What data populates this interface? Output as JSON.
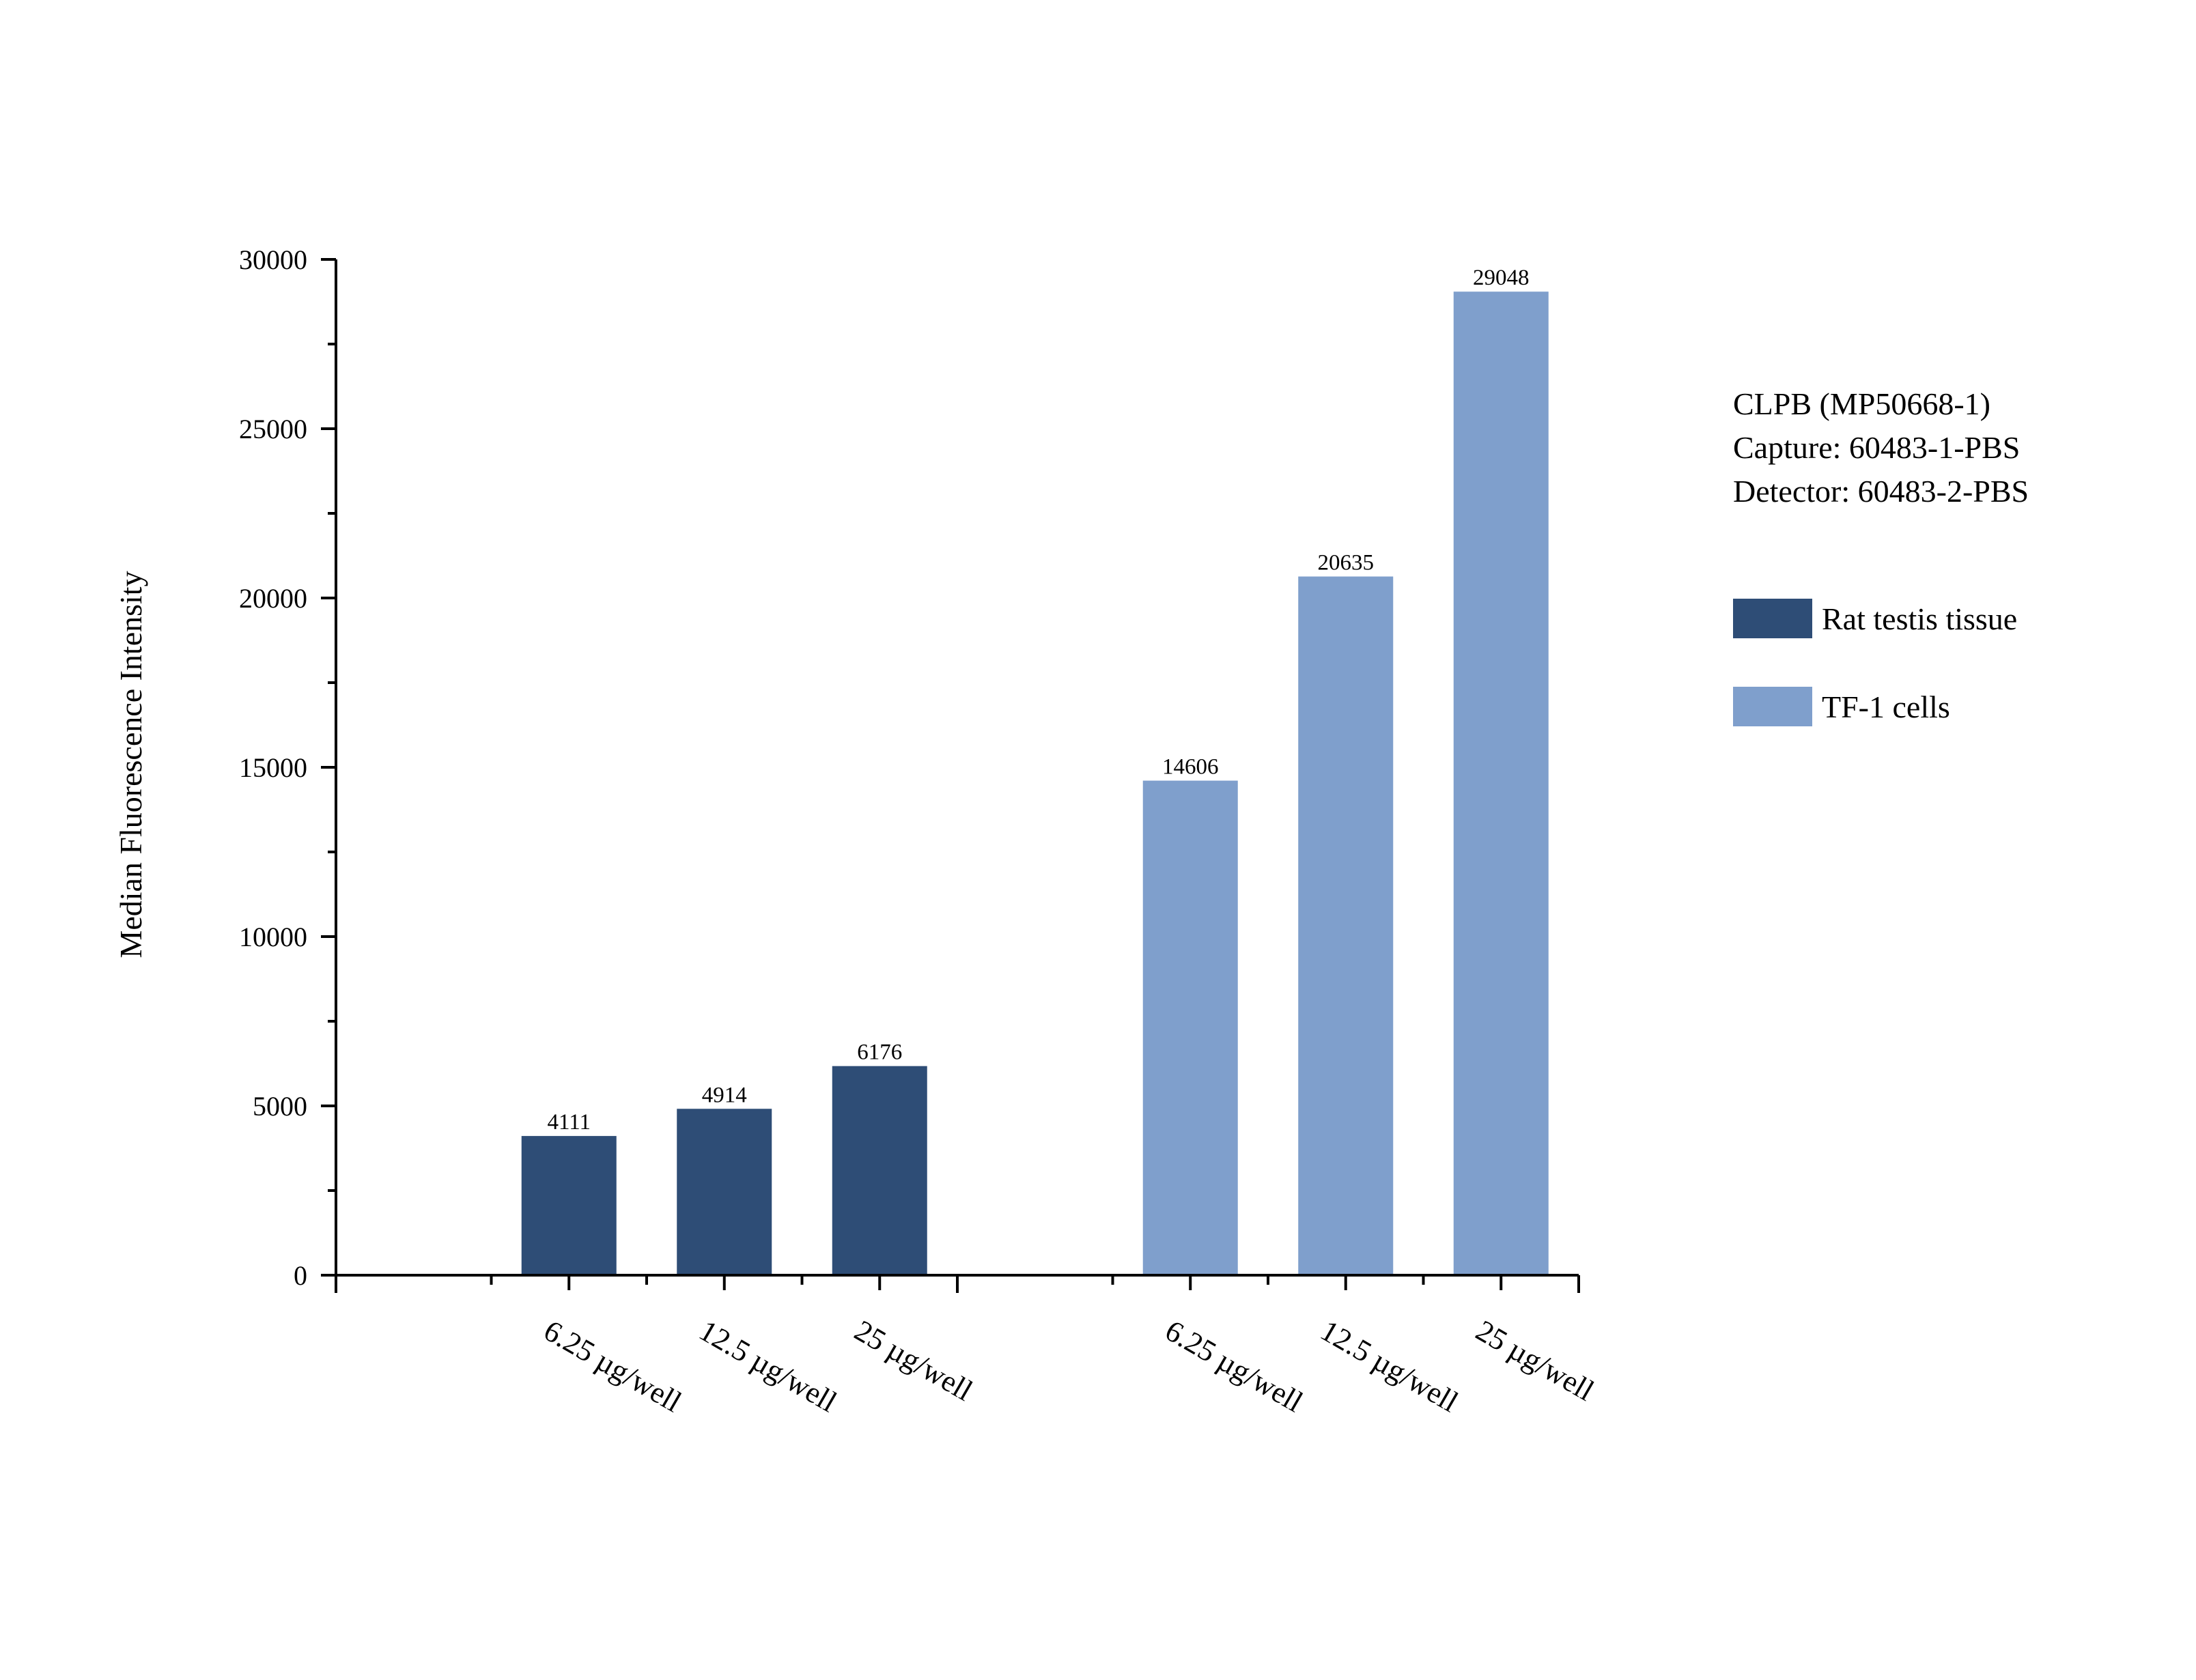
{
  "chart_data": {
    "type": "bar",
    "ylabel": "Median Fluorescence Intensity",
    "ylim": [
      0,
      30000
    ],
    "yticks": [
      0,
      5000,
      10000,
      15000,
      20000,
      25000,
      30000
    ],
    "ytick_labels": [
      "0",
      "5000",
      "10000",
      "15000",
      "20000",
      "25000",
      "30000"
    ],
    "grid": false,
    "legend_position": "right",
    "annotation_lines": [
      "CLPB (MP50668-1)",
      "Capture: 60483-1-PBS",
      "Detector: 60483-2-PBS"
    ],
    "groups": [
      {
        "name": "Rat testis tissue",
        "color": "#2e4d76",
        "categories": [
          "6.25 µg/well",
          "12.5 µg/well",
          "25 µg/well"
        ],
        "values": [
          4111,
          4914,
          6176
        ],
        "value_labels": [
          "4111",
          "4914",
          "6176"
        ]
      },
      {
        "name": "TF-1 cells",
        "color": "#7f9fcc",
        "categories": [
          "6.25 µg/well",
          "12.5 µg/well",
          "25 µg/well"
        ],
        "values": [
          14606,
          20635,
          29048
        ],
        "value_labels": [
          "14606",
          "20635",
          "29048"
        ]
      }
    ]
  }
}
